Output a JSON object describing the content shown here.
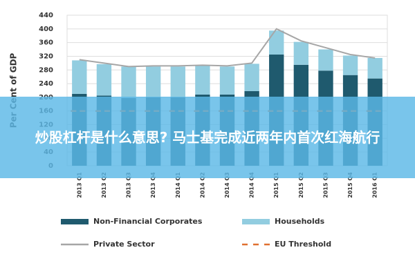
{
  "chart_data": {
    "type": "bar",
    "stacked": true,
    "y_label": "Per Cent of GDP",
    "categories": [
      "2013 Q1",
      "2013 Q2",
      "2013 Q3",
      "2013 Q4",
      "2014 Q1",
      "2014 Q2",
      "2014 Q3",
      "2014 Q4",
      "2015 Q1",
      "2015 Q2",
      "2015 Q3",
      "2015 Q4",
      "2016 Q1"
    ],
    "series": [
      {
        "name": "Non-Financial Corporates",
        "type": "bar",
        "color": "#1f5a6e",
        "values": [
          210,
          205,
          198,
          200,
          200,
          208,
          208,
          218,
          325,
          295,
          278,
          265,
          255
        ]
      },
      {
        "name": "Households",
        "type": "bar",
        "color": "#92cde0",
        "values": [
          98,
          92,
          92,
          90,
          90,
          84,
          82,
          80,
          70,
          67,
          62,
          57,
          60
        ]
      },
      {
        "name": "Private Sector",
        "type": "line",
        "color": "#a6a6a6",
        "values": [
          310,
          300,
          290,
          292,
          292,
          294,
          292,
          300,
          400,
          365,
          345,
          325,
          315
        ]
      },
      {
        "name": "EU Threshold",
        "type": "dash",
        "color": "#e07030",
        "values": [
          160,
          160,
          160,
          160,
          160,
          160,
          160,
          160,
          160,
          160,
          160,
          160,
          160
        ]
      }
    ],
    "ylim": [
      0,
      440
    ],
    "yticks": [
      0,
      40,
      80,
      120,
      160,
      200,
      240,
      280,
      320,
      360,
      400,
      440
    ],
    "grid": true
  },
  "overlay": {
    "text": "炒股杠杆是什么意思? 马士基完成近两年内首次红海航行"
  }
}
